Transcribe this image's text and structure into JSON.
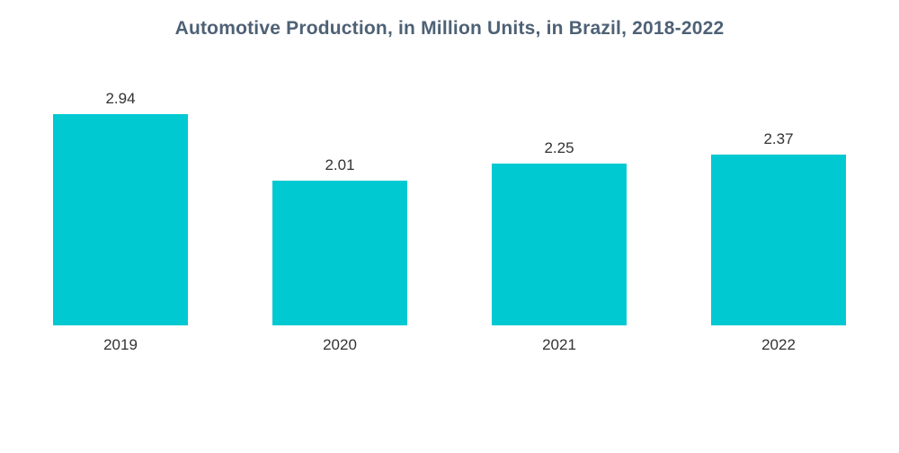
{
  "title": "Automotive Production, in Million Units, in Brazil, 2018-2022",
  "colors": {
    "bar": "#00C9D2",
    "title_text": "#4E6175",
    "label_text": "#333333",
    "background": "#ffffff"
  },
  "chart_data": {
    "type": "bar",
    "title": "Automotive Production, in Million Units, in Brazil, 2018-2022",
    "categories": [
      "2019",
      "2020",
      "2021",
      "2022"
    ],
    "values": [
      2.94,
      2.01,
      2.25,
      2.37
    ],
    "value_labels": [
      "2.94",
      "2.01",
      "2.25",
      "2.37"
    ],
    "xlabel": "",
    "ylabel": "",
    "ylim": [
      0,
      3.25
    ],
    "grid": false,
    "legend_position": "none",
    "axes_drawn": false
  }
}
